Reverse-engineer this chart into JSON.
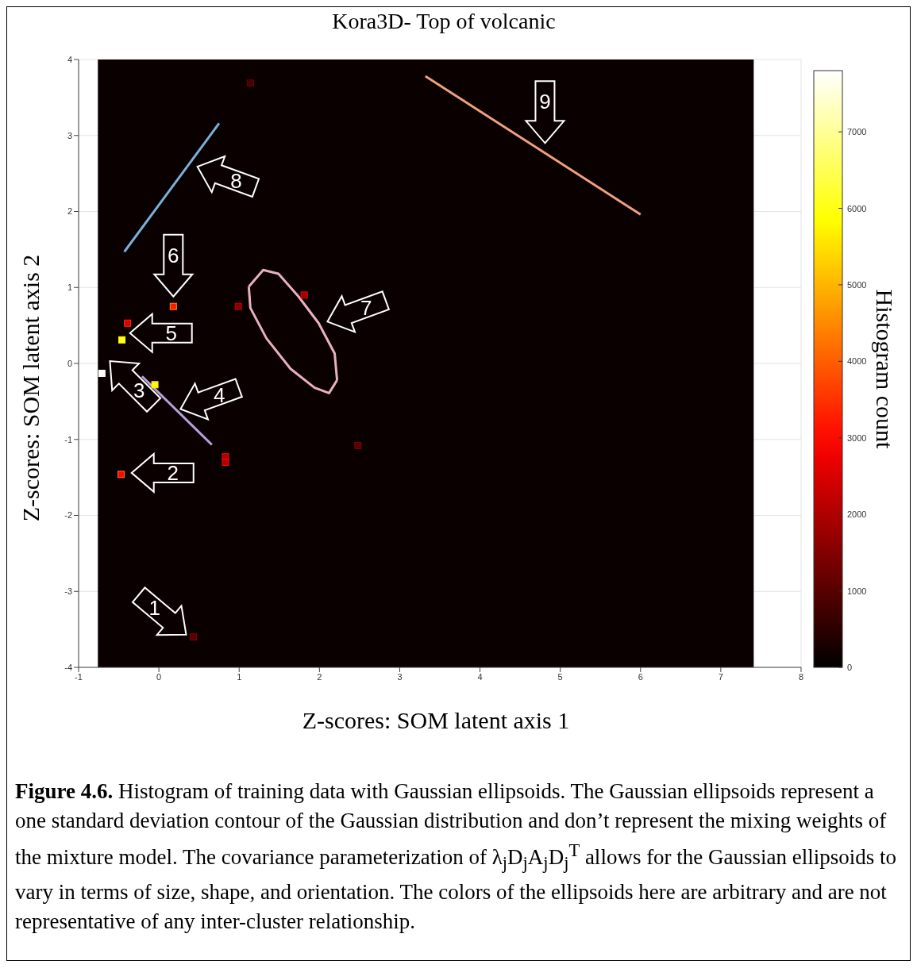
{
  "chart_data": {
    "type": "scatter",
    "title": "Kora3D- Top of volcanic",
    "xlabel": "Z-scores: SOM latent axis 1",
    "ylabel": "Z-scores: SOM latent axis 2",
    "clabel": "Histogram count",
    "xlim": [
      -1,
      8
    ],
    "ylim": [
      -4,
      4
    ],
    "xticks": [
      -1,
      0,
      1,
      2,
      3,
      4,
      5,
      6,
      7,
      8
    ],
    "yticks": [
      -4,
      -3,
      -2,
      -1,
      0,
      1,
      2,
      3,
      4
    ],
    "grid": true,
    "clim": [
      0,
      7800
    ],
    "cticks": [
      0,
      1000,
      2000,
      3000,
      4000,
      5000,
      6000,
      7000
    ],
    "bands": [
      {
        "axis": "x",
        "from": -0.76,
        "to": 7.41,
        "color": "#0a0000"
      }
    ],
    "series": [
      {
        "type": "line",
        "color": "#7ab0d8",
        "x": [
          -0.43,
          0.75
        ],
        "values": [
          1.47,
          3.16
        ]
      },
      {
        "type": "line",
        "color": "#f0a080",
        "x": [
          3.32,
          6.0
        ],
        "values": [
          3.78,
          1.96
        ]
      },
      {
        "type": "line",
        "color": "#b8a0d8",
        "x": [
          -0.21,
          0.66
        ],
        "values": [
          -0.17,
          -1.07
        ]
      },
      {
        "type": "line",
        "color": "#e8b0c0",
        "x": [
          1.12,
          1.3,
          1.49,
          1.74,
          1.99,
          2.19,
          2.22
        ],
        "values": [
          1.01,
          1.23,
          1.18,
          0.88,
          0.53,
          0.13,
          -0.22
        ]
      },
      {
        "type": "line",
        "color": "#e8b0c0",
        "x": [
          1.12,
          1.14,
          1.34,
          1.64,
          1.94,
          2.12,
          2.22
        ],
        "values": [
          1.01,
          0.73,
          0.33,
          -0.07,
          -0.32,
          -0.39,
          -0.22
        ]
      },
      {
        "marker": "square",
        "colors": [
          "#ffffff",
          "#ffff00",
          "#ff2900",
          "#ffed00",
          "#ff9300",
          "#ff8000",
          "#ca0000",
          "#f20000",
          "#ff0c00",
          "#ff0c00",
          "#860000",
          "#860000",
          "#6b0000"
        ],
        "x": [
          -0.71,
          -0.46,
          -0.39,
          -0.05,
          0.18,
          -0.47,
          0.99,
          1.81,
          0.83,
          0.83,
          2.48,
          0.43,
          1.14
        ],
        "values": [
          -0.13,
          0.31,
          0.53,
          -0.28,
          0.75,
          -1.46,
          0.75,
          0.9,
          -1.23,
          -1.3,
          -1.08,
          -3.6,
          3.69
        ],
        "cvalues": [
          7800,
          6000,
          2500,
          5800,
          3200,
          3000,
          1500,
          1800,
          2000,
          2000,
          1000,
          1000,
          800
        ]
      }
    ],
    "annotations": [
      "1",
      "2",
      "3",
      "4",
      "5",
      "6",
      "7",
      "8",
      "9",
      "Figure 4.6. Histogram of training data with Gaussian ellipsoids. The Gaussian ellipsoids represent a one standard deviation contour of the Gaussian distribution and don’t represent the mixing weights of the mixture model. The covariance parameterization of λ$_{j}$D$_{j}$A$_{j}$D$_{j}$$^{T}$ allows for the Gaussian ellipsoids to vary in terms of size, shape, and orientation. The colors of the ellipsoids here are arbitrary and are not representative of any inter-cluster relationship."
    ]
  }
}
